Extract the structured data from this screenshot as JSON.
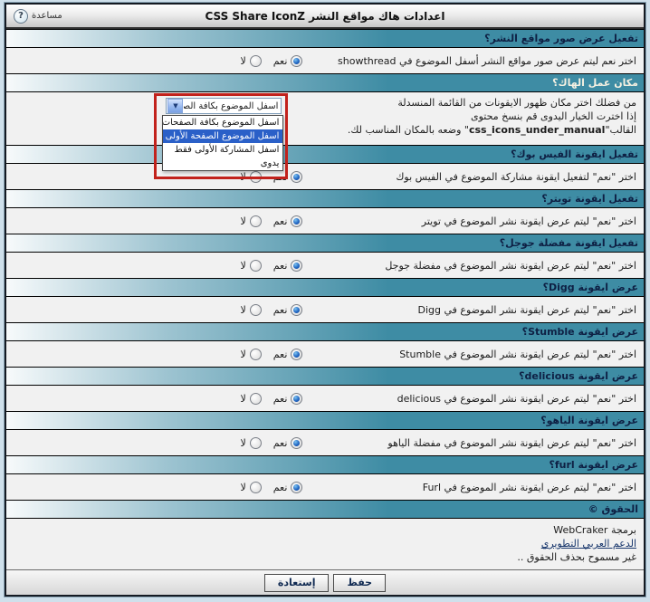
{
  "title_bar": {
    "title": "اعدادات هاك مواقع النشر CSS Share IconZ",
    "help_label": "مساعدة",
    "help_icon": "?"
  },
  "radio": {
    "yes": "نعم",
    "no": "لا",
    "selected": "yes"
  },
  "sections": [
    {
      "type": "radio",
      "header": "تفعيل عرض صور مواقع النشر؟",
      "desc": "اختر نعم ليتم عرض صور مواقع النشر أسفل الموضوع في showthread"
    },
    {
      "type": "dropdown",
      "header": "مكان عمل الهاك؟",
      "desc_lines": [
        "من فضلك اختر مكان ظهور الايقونات من القائمة المنسدلة",
        "إذا اخترت الخيار اليدوى قم بنسخ محتوى"
      ],
      "line3_prefix": "القالب\"",
      "line3_code": "css_icons_under_manual",
      "line3_suffix": "\" وضعه بالمكان المناسب لك.",
      "dropdown": {
        "value": "اسفل الموضوع بكافة الصفحات",
        "options": [
          "اسفل الموضوع بكافة الصفحات",
          "اسفل الموضوع الصفحة الأولى فقط",
          "اسفل المشاركة الأولى فقط",
          "يدوى"
        ],
        "highlighted_index": 1
      }
    },
    {
      "type": "radio",
      "header": "تفعيل ايقونة الفيس بوك؟",
      "desc": "اختر \"نعم\" لتفعيل ايقونة مشاركة الموضوع في الفيس بوك"
    },
    {
      "type": "radio",
      "header": "تفعيل ايقونة تويتر؟",
      "desc": "اختر \"نعم\" ليتم عرض ايقونة نشر الموضوع في تويتر"
    },
    {
      "type": "radio",
      "header": "تفعيل ايقونة مفضلة جوجل؟",
      "desc": "اختر \"نعم\" ليتم عرض ايقونة نشر الموضوع في مفضلة جوجل"
    },
    {
      "type": "radio",
      "header": "عرض ايقونة Digg؟",
      "desc": "اختر \"نعم\" ليتم عرض ايقونة نشر الموضوع في Digg"
    },
    {
      "type": "radio",
      "header": "عرض ايقونة Stumble؟",
      "desc": "اختر \"نعم\" ليتم عرض ايقونة نشر الموضوع في Stumble"
    },
    {
      "type": "radio",
      "header": "عرض ايقونة delicious؟",
      "desc": "اختر \"نعم\" ليتم عرض ايقونة نشر الموضوع في delicious"
    },
    {
      "type": "radio",
      "header": "عرض ايقونة الياهو؟",
      "desc": "اختر \"نعم\" ليتم عرض ايقونة نشر الموضوع في مفضلة الياهو"
    },
    {
      "type": "radio",
      "header": "عرض ايقونة furl؟",
      "desc": "اختر \"نعم\" ليتم عرض ايقونة نشر الموضوع في Furl"
    }
  ],
  "footer": {
    "header": "الحقوق ©",
    "line1": "برمجة WebCraker",
    "link": "الدعم العربي التطويري",
    "line3": "غير مسموح بحذف الحقوق .."
  },
  "buttons": {
    "save": "حفظ",
    "restore": "إستعادة"
  },
  "colors": {
    "accent_teal": "#3e8ca4",
    "list_highlight": "#2a60c8",
    "annotation_red": "#c2221c"
  }
}
